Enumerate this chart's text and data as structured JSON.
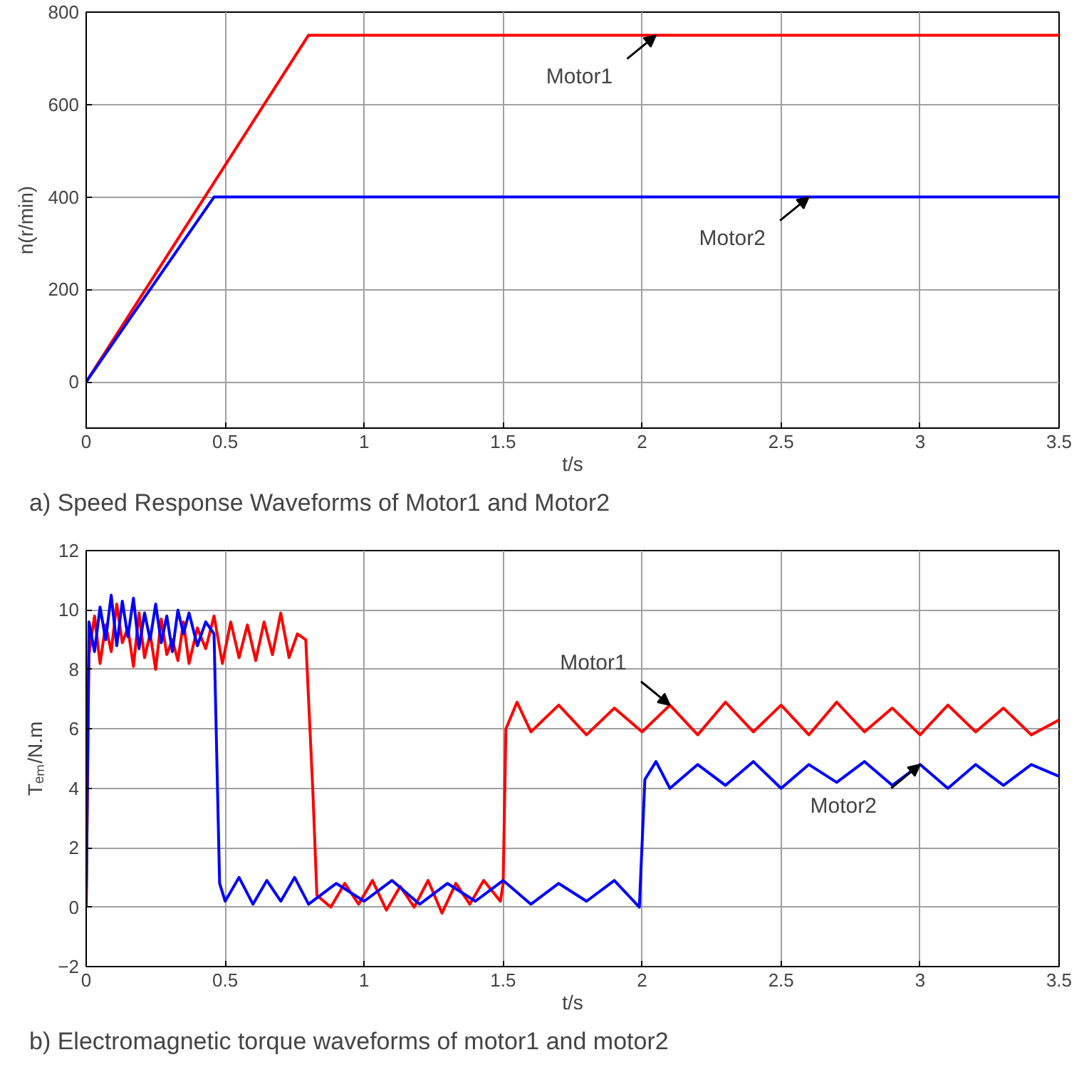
{
  "chart_data": [
    {
      "type": "line",
      "title": "a)   Speed Response Waveforms of Motor1 and Motor2",
      "xlabel": "t/s",
      "ylabel": "n(r/min)",
      "xlim": [
        0,
        3.5
      ],
      "ylim": [
        -100,
        800
      ],
      "xticks": [
        0,
        0.5,
        1,
        1.5,
        2,
        2.5,
        3,
        3.5
      ],
      "yticks": [
        0,
        200,
        400,
        600,
        800
      ],
      "grid": true,
      "series": [
        {
          "color": "#ff0000",
          "x": [
            0,
            0.8,
            3.5
          ],
          "values": [
            0,
            750,
            750
          ]
        },
        {
          "color": "#0000ff",
          "x": [
            0,
            0.46,
            3.5
          ],
          "values": [
            0,
            400,
            400
          ]
        }
      ],
      "annotations": [
        {
          "text": "Motor1",
          "x": 2.05,
          "y": 750
        },
        {
          "text": "Motor2",
          "x": 2.6,
          "y": 400
        }
      ]
    },
    {
      "type": "line",
      "title": "b)   Electromagnetic torque waveforms of motor1 and motor2",
      "xlabel": "t/s",
      "ylabel": "Tₑₘ/N.m",
      "xlim": [
        0,
        3.5
      ],
      "ylim": [
        -2,
        12
      ],
      "xticks": [
        0,
        0.5,
        1,
        1.5,
        2,
        2.5,
        3,
        3.5
      ],
      "yticks": [
        -2,
        0,
        2,
        4,
        6,
        8,
        10,
        12
      ],
      "grid": true,
      "series": [
        {
          "color": "#ff0000",
          "x": [
            0,
            0.01,
            0.03,
            0.05,
            0.07,
            0.09,
            0.11,
            0.13,
            0.15,
            0.17,
            0.19,
            0.21,
            0.23,
            0.25,
            0.27,
            0.29,
            0.31,
            0.33,
            0.35,
            0.37,
            0.4,
            0.43,
            0.46,
            0.49,
            0.52,
            0.55,
            0.58,
            0.61,
            0.64,
            0.67,
            0.7,
            0.73,
            0.76,
            0.79,
            0.815,
            0.83,
            0.88,
            0.93,
            0.98,
            1.03,
            1.08,
            1.13,
            1.18,
            1.23,
            1.28,
            1.33,
            1.38,
            1.43,
            1.49,
            1.5,
            1.51,
            1.55,
            1.6,
            1.7,
            1.8,
            1.9,
            2.0,
            2.1,
            2.2,
            2.3,
            2.4,
            2.5,
            2.6,
            2.7,
            2.8,
            2.9,
            3.0,
            3.1,
            3.2,
            3.3,
            3.4,
            3.5
          ],
          "values": [
            0,
            8.5,
            9.8,
            8.2,
            9.5,
            8.6,
            10.2,
            8.9,
            9.4,
            8.1,
            9.9,
            8.4,
            9.2,
            8.0,
            9.7,
            8.5,
            9.0,
            8.3,
            9.6,
            8.2,
            9.4,
            8.7,
            9.8,
            8.2,
            9.6,
            8.4,
            9.5,
            8.3,
            9.6,
            8.5,
            9.9,
            8.4,
            9.2,
            9.0,
            4.0,
            0.4,
            0.0,
            0.8,
            0.1,
            0.9,
            -0.1,
            0.7,
            0.0,
            0.9,
            -0.2,
            0.8,
            0.1,
            0.9,
            0.2,
            0.8,
            6.0,
            6.9,
            5.9,
            6.8,
            5.8,
            6.7,
            5.9,
            6.8,
            5.8,
            6.9,
            5.9,
            6.8,
            5.8,
            6.9,
            5.9,
            6.7,
            5.8,
            6.8,
            5.9,
            6.7,
            5.8,
            6.3
          ]
        },
        {
          "color": "#0000ff",
          "x": [
            0,
            0.01,
            0.03,
            0.05,
            0.07,
            0.09,
            0.11,
            0.13,
            0.15,
            0.17,
            0.19,
            0.21,
            0.23,
            0.25,
            0.27,
            0.29,
            0.31,
            0.33,
            0.35,
            0.37,
            0.4,
            0.43,
            0.46,
            0.47,
            0.48,
            0.5,
            0.55,
            0.6,
            0.65,
            0.7,
            0.75,
            0.8,
            0.9,
            1.0,
            1.1,
            1.2,
            1.3,
            1.4,
            1.5,
            1.6,
            1.7,
            1.8,
            1.9,
            1.99,
            2.01,
            2.05,
            2.1,
            2.2,
            2.3,
            2.4,
            2.5,
            2.6,
            2.7,
            2.8,
            2.9,
            3.0,
            3.1,
            3.2,
            3.3,
            3.4,
            3.5
          ],
          "values": [
            0,
            9.6,
            8.6,
            10.1,
            9.0,
            10.5,
            8.8,
            10.3,
            9.1,
            10.4,
            8.7,
            9.9,
            9.0,
            10.2,
            8.9,
            9.8,
            8.6,
            10.0,
            9.2,
            9.9,
            8.8,
            9.6,
            9.2,
            5.0,
            0.8,
            0.2,
            1.0,
            0.1,
            0.9,
            0.2,
            1.0,
            0.1,
            0.8,
            0.2,
            0.9,
            0.1,
            0.8,
            0.2,
            0.9,
            0.1,
            0.8,
            0.2,
            0.9,
            0.0,
            4.3,
            4.9,
            4.0,
            4.8,
            4.1,
            4.9,
            4.0,
            4.8,
            4.2,
            4.9,
            4.1,
            4.8,
            4.0,
            4.8,
            4.1,
            4.8,
            4.4
          ]
        }
      ],
      "annotations": [
        {
          "text": "Motor1",
          "x": 2.1,
          "y": 6.8
        },
        {
          "text": "Motor2",
          "x": 3.0,
          "y": 4.8
        }
      ]
    }
  ]
}
